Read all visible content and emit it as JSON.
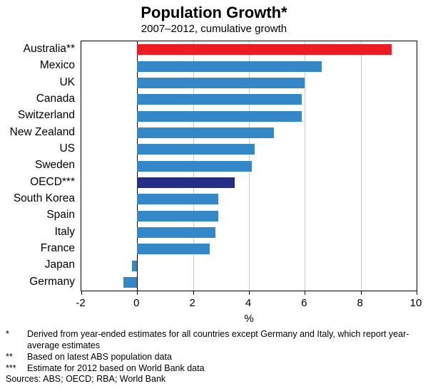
{
  "chart_data": {
    "type": "bar",
    "orientation": "horizontal",
    "title": "Population Growth*",
    "subtitle": "2007–2012, cumulative growth",
    "categories": [
      "Australia**",
      "Mexico",
      "UK",
      "Canada",
      "Switzerland",
      "New Zealand",
      "US",
      "Sweden",
      "OECD***",
      "South Korea",
      "Spain",
      "Italy",
      "France",
      "Japan",
      "Germany"
    ],
    "values": [
      9.1,
      6.6,
      6.0,
      5.9,
      5.9,
      4.9,
      4.2,
      4.1,
      3.5,
      2.9,
      2.9,
      2.8,
      2.6,
      -0.2,
      -0.5
    ],
    "bar_colors": [
      "#ed1c24",
      null,
      null,
      null,
      null,
      null,
      null,
      null,
      "#252e87",
      null,
      null,
      null,
      null,
      null,
      null
    ],
    "default_bar_color": "#3488c8",
    "xlabel": "%",
    "xlim": [
      -2,
      10
    ],
    "xticks": [
      -2,
      0,
      2,
      4,
      6,
      8,
      10
    ],
    "grid": true,
    "gridline_color": "#c8c8c8"
  },
  "footnotes": [
    {
      "marker": "*",
      "text": "Derived from year-ended estimates for all countries except Germany and Italy, which report year-average estimates"
    },
    {
      "marker": "**",
      "text": "Based on latest ABS population data"
    },
    {
      "marker": "***",
      "text": "Estimate for 2012 based on World Bank data"
    }
  ],
  "sources": "Sources: ABS; OECD; RBA; World Bank"
}
